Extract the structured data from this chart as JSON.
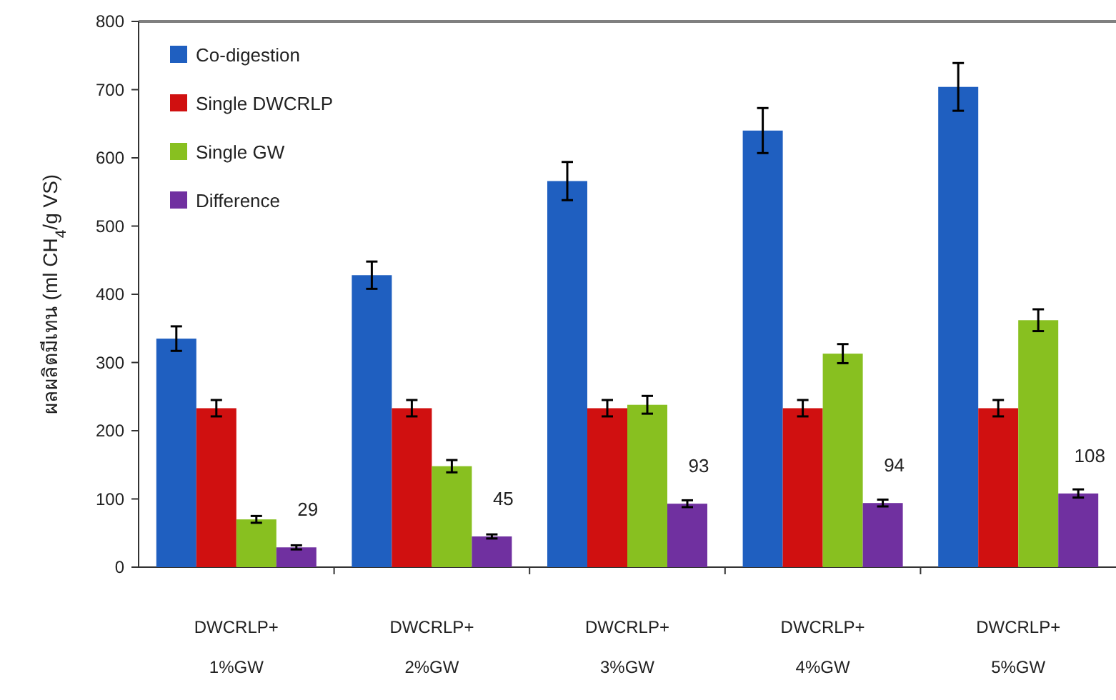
{
  "chart_data": {
    "type": "bar",
    "ylabel": "ผลผลิตมีเทน (ml CH$_{4}$/g VS)",
    "categories": [
      "DWCRLP+ 1%GW",
      "DWCRLP+ 2%GW",
      "DWCRLP+ 3%GW",
      "DWCRLP+ 4%GW",
      "DWCRLP+ 5%GW"
    ],
    "series": [
      {
        "name": "Co-digestion",
        "color": "#1f5fc0",
        "values": [
          335,
          428,
          566,
          640,
          704
        ],
        "errors": [
          18,
          20,
          28,
          33,
          35
        ]
      },
      {
        "name": "Single DWCRLP",
        "color": "#d01010",
        "values": [
          233,
          233,
          233,
          233,
          233
        ],
        "errors": [
          12,
          12,
          12,
          12,
          12
        ]
      },
      {
        "name": "Single GW",
        "color": "#88c020",
        "values": [
          70,
          148,
          238,
          313,
          362
        ],
        "errors": [
          5,
          9,
          13,
          14,
          16
        ]
      },
      {
        "name": "Difference",
        "color": "#7030a0",
        "values": [
          29,
          45,
          93,
          94,
          108
        ],
        "errors": [
          3,
          3,
          5,
          5,
          6
        ],
        "data_labels": true
      }
    ],
    "ylim": [
      0,
      800
    ],
    "yticks": [
      0,
      100,
      200,
      300,
      400,
      500,
      600,
      700,
      800
    ],
    "legend": "top left"
  }
}
